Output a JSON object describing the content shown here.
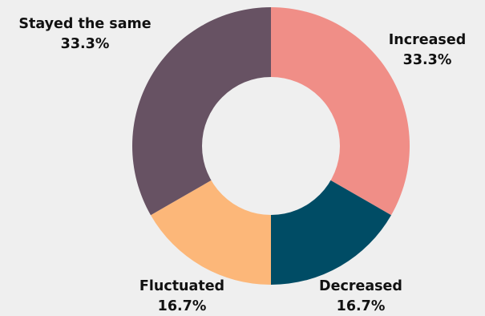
{
  "chart_data": {
    "type": "pie",
    "variant": "donut",
    "title": "",
    "categories": [
      "Increased",
      "Decreased",
      "Fluctuated",
      "Stayed the same"
    ],
    "values": [
      33.3,
      16.7,
      16.7,
      33.3
    ],
    "value_labels": [
      "33.3%",
      "16.7%",
      "16.7%",
      "33.3%"
    ],
    "colors": [
      "#f08e87",
      "#004c65",
      "#fcb779",
      "#675263"
    ],
    "legend": "none",
    "start_angle": "12 o'clock",
    "direction": "clockwise"
  }
}
